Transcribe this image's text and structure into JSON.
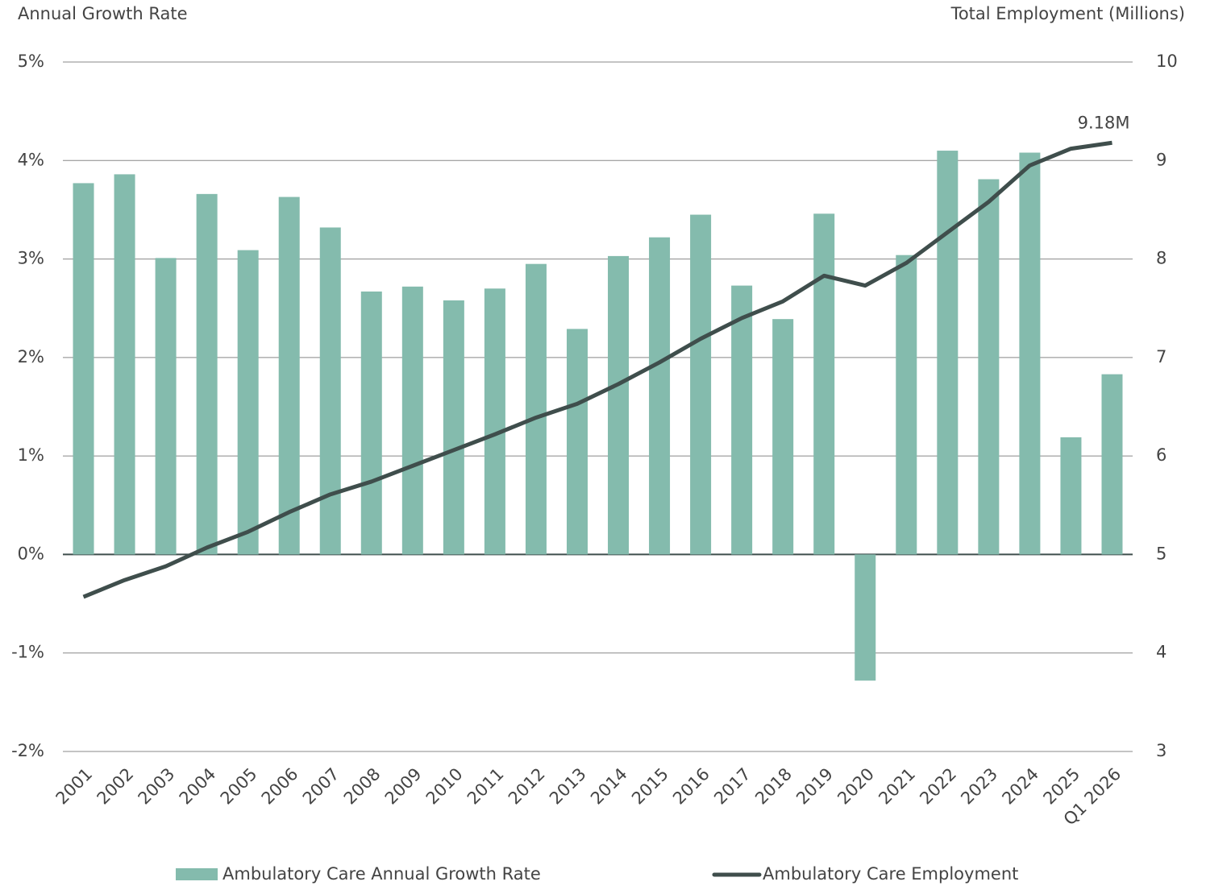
{
  "chart_data": {
    "type": "bar",
    "y_axis_title": "Annual Growth Rate",
    "y2_axis_title": "Total Employment (Millions)",
    "categories": [
      "2001",
      "2002",
      "2003",
      "2004",
      "2005",
      "2006",
      "2007",
      "2008",
      "2009",
      "2010",
      "2011",
      "2012",
      "2013",
      "2014",
      "2015",
      "2016",
      "2017",
      "2018",
      "2019",
      "2020",
      "2021",
      "2022",
      "2023",
      "2024",
      "2025",
      "Q1 2026"
    ],
    "series": [
      {
        "name": "Ambulatory Care Annual Growth Rate",
        "type": "bar",
        "axis": "y",
        "color": "#84bbad",
        "values": [
          3.77,
          3.86,
          3.01,
          3.66,
          3.09,
          3.63,
          3.32,
          2.67,
          2.72,
          2.58,
          2.7,
          2.95,
          2.29,
          3.03,
          3.22,
          3.45,
          2.73,
          2.39,
          3.46,
          -1.28,
          3.04,
          4.1,
          3.81,
          4.08,
          1.19,
          1.83
        ]
      },
      {
        "name": "Ambulatory Care Employment",
        "type": "line",
        "axis": "y2",
        "color": "#3f4e4c",
        "values": [
          4.57,
          4.74,
          4.88,
          5.07,
          5.23,
          5.43,
          5.61,
          5.74,
          5.9,
          6.06,
          6.22,
          6.39,
          6.53,
          6.73,
          6.95,
          7.19,
          7.4,
          7.57,
          7.83,
          7.73,
          7.96,
          8.27,
          8.58,
          8.95,
          9.12,
          9.18
        ],
        "value_labels": [
          null,
          null,
          null,
          null,
          null,
          null,
          null,
          null,
          null,
          null,
          null,
          null,
          null,
          null,
          null,
          null,
          null,
          null,
          null,
          null,
          null,
          null,
          null,
          null,
          null,
          "9.18M"
        ]
      }
    ],
    "ylim": [
      -2,
      5
    ],
    "yticks": [
      {
        "value": -2,
        "label": "-2%"
      },
      {
        "value": -1,
        "label": "-1%"
      },
      {
        "value": 0,
        "label": "0%"
      },
      {
        "value": 1,
        "label": "1%"
      },
      {
        "value": 2,
        "label": "2%"
      },
      {
        "value": 3,
        "label": "3%"
      },
      {
        "value": 4,
        "label": "4%"
      },
      {
        "value": 5,
        "label": "5%"
      }
    ],
    "y2lim": [
      3,
      10
    ],
    "y2ticks": [
      3,
      4,
      5,
      6,
      7,
      8,
      9,
      10
    ],
    "grid": true,
    "legend": "bottom"
  }
}
